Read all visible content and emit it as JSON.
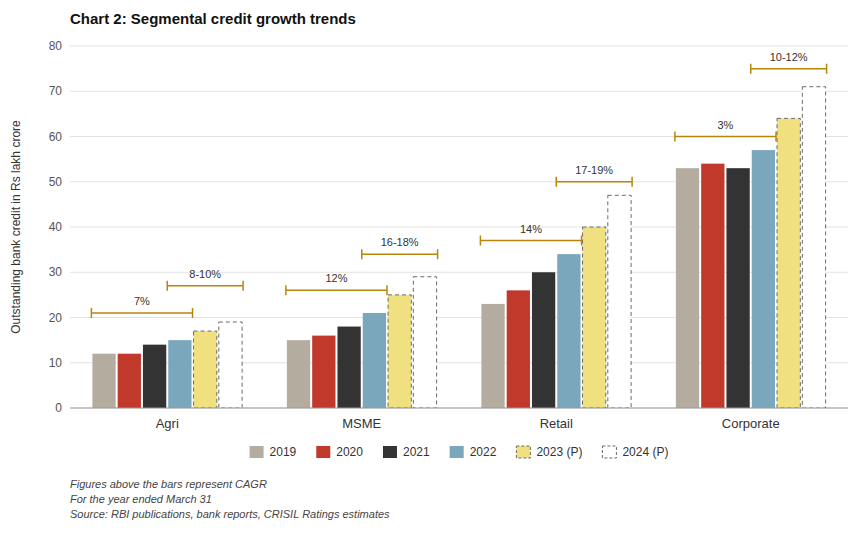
{
  "chart_data": {
    "type": "bar",
    "title": "Chart 2: Segmental credit growth trends",
    "ylabel": "Outstanding bank credit in Rs lakh crore",
    "categories": [
      "Agri",
      "MSME",
      "Retail",
      "Corporate"
    ],
    "series": [
      {
        "name": "2019",
        "color": "#b5aca0",
        "values": [
          12,
          15,
          23,
          53
        ]
      },
      {
        "name": "2020",
        "color": "#c0392b",
        "values": [
          12,
          16,
          26,
          54
        ]
      },
      {
        "name": "2021",
        "color": "#333333",
        "values": [
          14,
          18,
          30,
          53
        ]
      },
      {
        "name": "2022",
        "color": "#7ba7bc",
        "values": [
          15,
          21,
          34,
          57
        ]
      },
      {
        "name": "2023 (P)",
        "color": "#f0e080",
        "line_style": "dashed",
        "values": [
          17,
          25,
          40,
          64
        ]
      },
      {
        "name": "2024 (P)",
        "color": "#ffffff",
        "line_style": "dashed",
        "values": [
          19,
          29,
          47,
          71
        ]
      }
    ],
    "annotations": [
      {
        "text": "7%",
        "category": 0,
        "series": [
          0,
          3
        ],
        "y": 21
      },
      {
        "text": "8-10%",
        "category": 0,
        "series": [
          3,
          5
        ],
        "y": 27
      },
      {
        "text": "12%",
        "category": 1,
        "series": [
          0,
          3
        ],
        "y": 26
      },
      {
        "text": "16-18%",
        "category": 1,
        "series": [
          3,
          5
        ],
        "y": 34
      },
      {
        "text": "14%",
        "category": 2,
        "series": [
          0,
          3
        ],
        "y": 37
      },
      {
        "text": "17-19%",
        "category": 2,
        "series": [
          3,
          5
        ],
        "y": 50
      },
      {
        "text": "3%",
        "category": 3,
        "series": [
          0,
          3
        ],
        "y": 60
      },
      {
        "text": "10-12%",
        "category": 3,
        "series": [
          3,
          5
        ],
        "y": 75
      }
    ],
    "footnote": [
      "Figures above the bars represent CAGR",
      "For the year ended March 31",
      "Source: RBI publications, bank reports, CRISIL Ratings estimates"
    ],
    "ylim": [
      0,
      80
    ],
    "yticks": [
      0,
      10,
      20,
      30,
      40,
      50,
      60,
      70,
      80
    ],
    "grid": true,
    "legend": "bottom"
  }
}
